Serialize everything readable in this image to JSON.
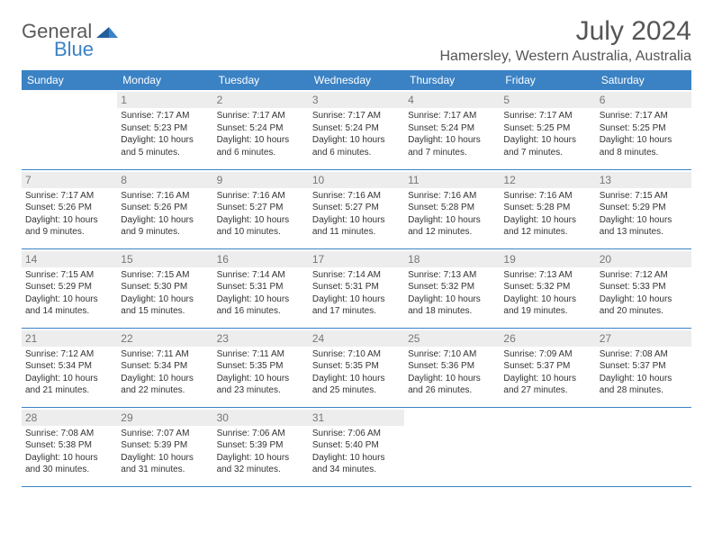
{
  "logo": {
    "part1": "General",
    "part2": "Blue"
  },
  "title": "July 2024",
  "subtitle": "Hamersley, Western Australia, Australia",
  "colors": {
    "header_bg": "#3b82c4",
    "header_text": "#ffffff",
    "daynum_bg": "#ededed",
    "daynum_text": "#777777",
    "border": "#3b82c4",
    "body_text": "#333333"
  },
  "dayHeaders": [
    "Sunday",
    "Monday",
    "Tuesday",
    "Wednesday",
    "Thursday",
    "Friday",
    "Saturday"
  ],
  "weeks": [
    [
      {
        "empty": true
      },
      {
        "day": "1",
        "sunrise": "Sunrise: 7:17 AM",
        "sunset": "Sunset: 5:23 PM",
        "daylight1": "Daylight: 10 hours",
        "daylight2": "and 5 minutes."
      },
      {
        "day": "2",
        "sunrise": "Sunrise: 7:17 AM",
        "sunset": "Sunset: 5:24 PM",
        "daylight1": "Daylight: 10 hours",
        "daylight2": "and 6 minutes."
      },
      {
        "day": "3",
        "sunrise": "Sunrise: 7:17 AM",
        "sunset": "Sunset: 5:24 PM",
        "daylight1": "Daylight: 10 hours",
        "daylight2": "and 6 minutes."
      },
      {
        "day": "4",
        "sunrise": "Sunrise: 7:17 AM",
        "sunset": "Sunset: 5:24 PM",
        "daylight1": "Daylight: 10 hours",
        "daylight2": "and 7 minutes."
      },
      {
        "day": "5",
        "sunrise": "Sunrise: 7:17 AM",
        "sunset": "Sunset: 5:25 PM",
        "daylight1": "Daylight: 10 hours",
        "daylight2": "and 7 minutes."
      },
      {
        "day": "6",
        "sunrise": "Sunrise: 7:17 AM",
        "sunset": "Sunset: 5:25 PM",
        "daylight1": "Daylight: 10 hours",
        "daylight2": "and 8 minutes."
      }
    ],
    [
      {
        "day": "7",
        "sunrise": "Sunrise: 7:17 AM",
        "sunset": "Sunset: 5:26 PM",
        "daylight1": "Daylight: 10 hours",
        "daylight2": "and 9 minutes."
      },
      {
        "day": "8",
        "sunrise": "Sunrise: 7:16 AM",
        "sunset": "Sunset: 5:26 PM",
        "daylight1": "Daylight: 10 hours",
        "daylight2": "and 9 minutes."
      },
      {
        "day": "9",
        "sunrise": "Sunrise: 7:16 AM",
        "sunset": "Sunset: 5:27 PM",
        "daylight1": "Daylight: 10 hours",
        "daylight2": "and 10 minutes."
      },
      {
        "day": "10",
        "sunrise": "Sunrise: 7:16 AM",
        "sunset": "Sunset: 5:27 PM",
        "daylight1": "Daylight: 10 hours",
        "daylight2": "and 11 minutes."
      },
      {
        "day": "11",
        "sunrise": "Sunrise: 7:16 AM",
        "sunset": "Sunset: 5:28 PM",
        "daylight1": "Daylight: 10 hours",
        "daylight2": "and 12 minutes."
      },
      {
        "day": "12",
        "sunrise": "Sunrise: 7:16 AM",
        "sunset": "Sunset: 5:28 PM",
        "daylight1": "Daylight: 10 hours",
        "daylight2": "and 12 minutes."
      },
      {
        "day": "13",
        "sunrise": "Sunrise: 7:15 AM",
        "sunset": "Sunset: 5:29 PM",
        "daylight1": "Daylight: 10 hours",
        "daylight2": "and 13 minutes."
      }
    ],
    [
      {
        "day": "14",
        "sunrise": "Sunrise: 7:15 AM",
        "sunset": "Sunset: 5:29 PM",
        "daylight1": "Daylight: 10 hours",
        "daylight2": "and 14 minutes."
      },
      {
        "day": "15",
        "sunrise": "Sunrise: 7:15 AM",
        "sunset": "Sunset: 5:30 PM",
        "daylight1": "Daylight: 10 hours",
        "daylight2": "and 15 minutes."
      },
      {
        "day": "16",
        "sunrise": "Sunrise: 7:14 AM",
        "sunset": "Sunset: 5:31 PM",
        "daylight1": "Daylight: 10 hours",
        "daylight2": "and 16 minutes."
      },
      {
        "day": "17",
        "sunrise": "Sunrise: 7:14 AM",
        "sunset": "Sunset: 5:31 PM",
        "daylight1": "Daylight: 10 hours",
        "daylight2": "and 17 minutes."
      },
      {
        "day": "18",
        "sunrise": "Sunrise: 7:13 AM",
        "sunset": "Sunset: 5:32 PM",
        "daylight1": "Daylight: 10 hours",
        "daylight2": "and 18 minutes."
      },
      {
        "day": "19",
        "sunrise": "Sunrise: 7:13 AM",
        "sunset": "Sunset: 5:32 PM",
        "daylight1": "Daylight: 10 hours",
        "daylight2": "and 19 minutes."
      },
      {
        "day": "20",
        "sunrise": "Sunrise: 7:12 AM",
        "sunset": "Sunset: 5:33 PM",
        "daylight1": "Daylight: 10 hours",
        "daylight2": "and 20 minutes."
      }
    ],
    [
      {
        "day": "21",
        "sunrise": "Sunrise: 7:12 AM",
        "sunset": "Sunset: 5:34 PM",
        "daylight1": "Daylight: 10 hours",
        "daylight2": "and 21 minutes."
      },
      {
        "day": "22",
        "sunrise": "Sunrise: 7:11 AM",
        "sunset": "Sunset: 5:34 PM",
        "daylight1": "Daylight: 10 hours",
        "daylight2": "and 22 minutes."
      },
      {
        "day": "23",
        "sunrise": "Sunrise: 7:11 AM",
        "sunset": "Sunset: 5:35 PM",
        "daylight1": "Daylight: 10 hours",
        "daylight2": "and 23 minutes."
      },
      {
        "day": "24",
        "sunrise": "Sunrise: 7:10 AM",
        "sunset": "Sunset: 5:35 PM",
        "daylight1": "Daylight: 10 hours",
        "daylight2": "and 25 minutes."
      },
      {
        "day": "25",
        "sunrise": "Sunrise: 7:10 AM",
        "sunset": "Sunset: 5:36 PM",
        "daylight1": "Daylight: 10 hours",
        "daylight2": "and 26 minutes."
      },
      {
        "day": "26",
        "sunrise": "Sunrise: 7:09 AM",
        "sunset": "Sunset: 5:37 PM",
        "daylight1": "Daylight: 10 hours",
        "daylight2": "and 27 minutes."
      },
      {
        "day": "27",
        "sunrise": "Sunrise: 7:08 AM",
        "sunset": "Sunset: 5:37 PM",
        "daylight1": "Daylight: 10 hours",
        "daylight2": "and 28 minutes."
      }
    ],
    [
      {
        "day": "28",
        "sunrise": "Sunrise: 7:08 AM",
        "sunset": "Sunset: 5:38 PM",
        "daylight1": "Daylight: 10 hours",
        "daylight2": "and 30 minutes."
      },
      {
        "day": "29",
        "sunrise": "Sunrise: 7:07 AM",
        "sunset": "Sunset: 5:39 PM",
        "daylight1": "Daylight: 10 hours",
        "daylight2": "and 31 minutes."
      },
      {
        "day": "30",
        "sunrise": "Sunrise: 7:06 AM",
        "sunset": "Sunset: 5:39 PM",
        "daylight1": "Daylight: 10 hours",
        "daylight2": "and 32 minutes."
      },
      {
        "day": "31",
        "sunrise": "Sunrise: 7:06 AM",
        "sunset": "Sunset: 5:40 PM",
        "daylight1": "Daylight: 10 hours",
        "daylight2": "and 34 minutes."
      },
      {
        "empty": true
      },
      {
        "empty": true
      },
      {
        "empty": true
      }
    ]
  ]
}
